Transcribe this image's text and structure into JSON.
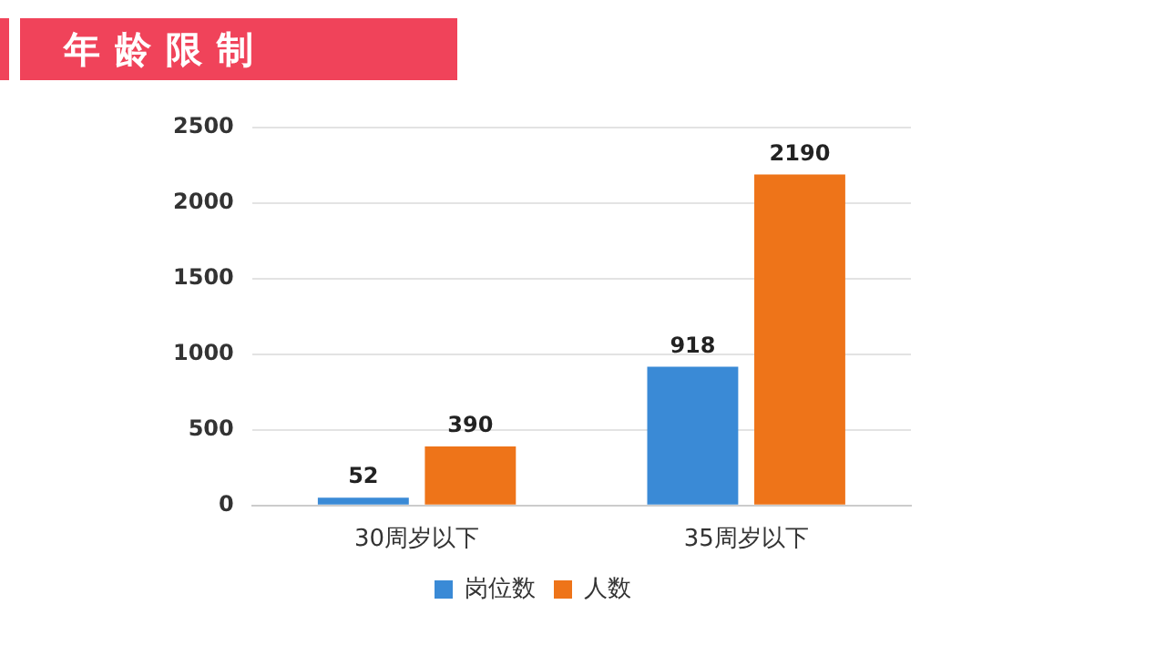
{
  "chart_data": {
    "type": "bar",
    "title": "年龄限制",
    "categories": [
      "30周岁以下",
      "35周岁以下"
    ],
    "series": [
      {
        "name": "岗位数",
        "color": "#3a8ad6",
        "values": [
          52,
          918
        ]
      },
      {
        "name": "人数",
        "color": "#ee7419",
        "values": [
          390,
          2190
        ]
      }
    ],
    "ylim": [
      0,
      2500
    ],
    "yticks": [
      0,
      500,
      1000,
      1500,
      2000,
      2500
    ],
    "grid": "y",
    "legend": "bottom",
    "data_labels": true
  }
}
